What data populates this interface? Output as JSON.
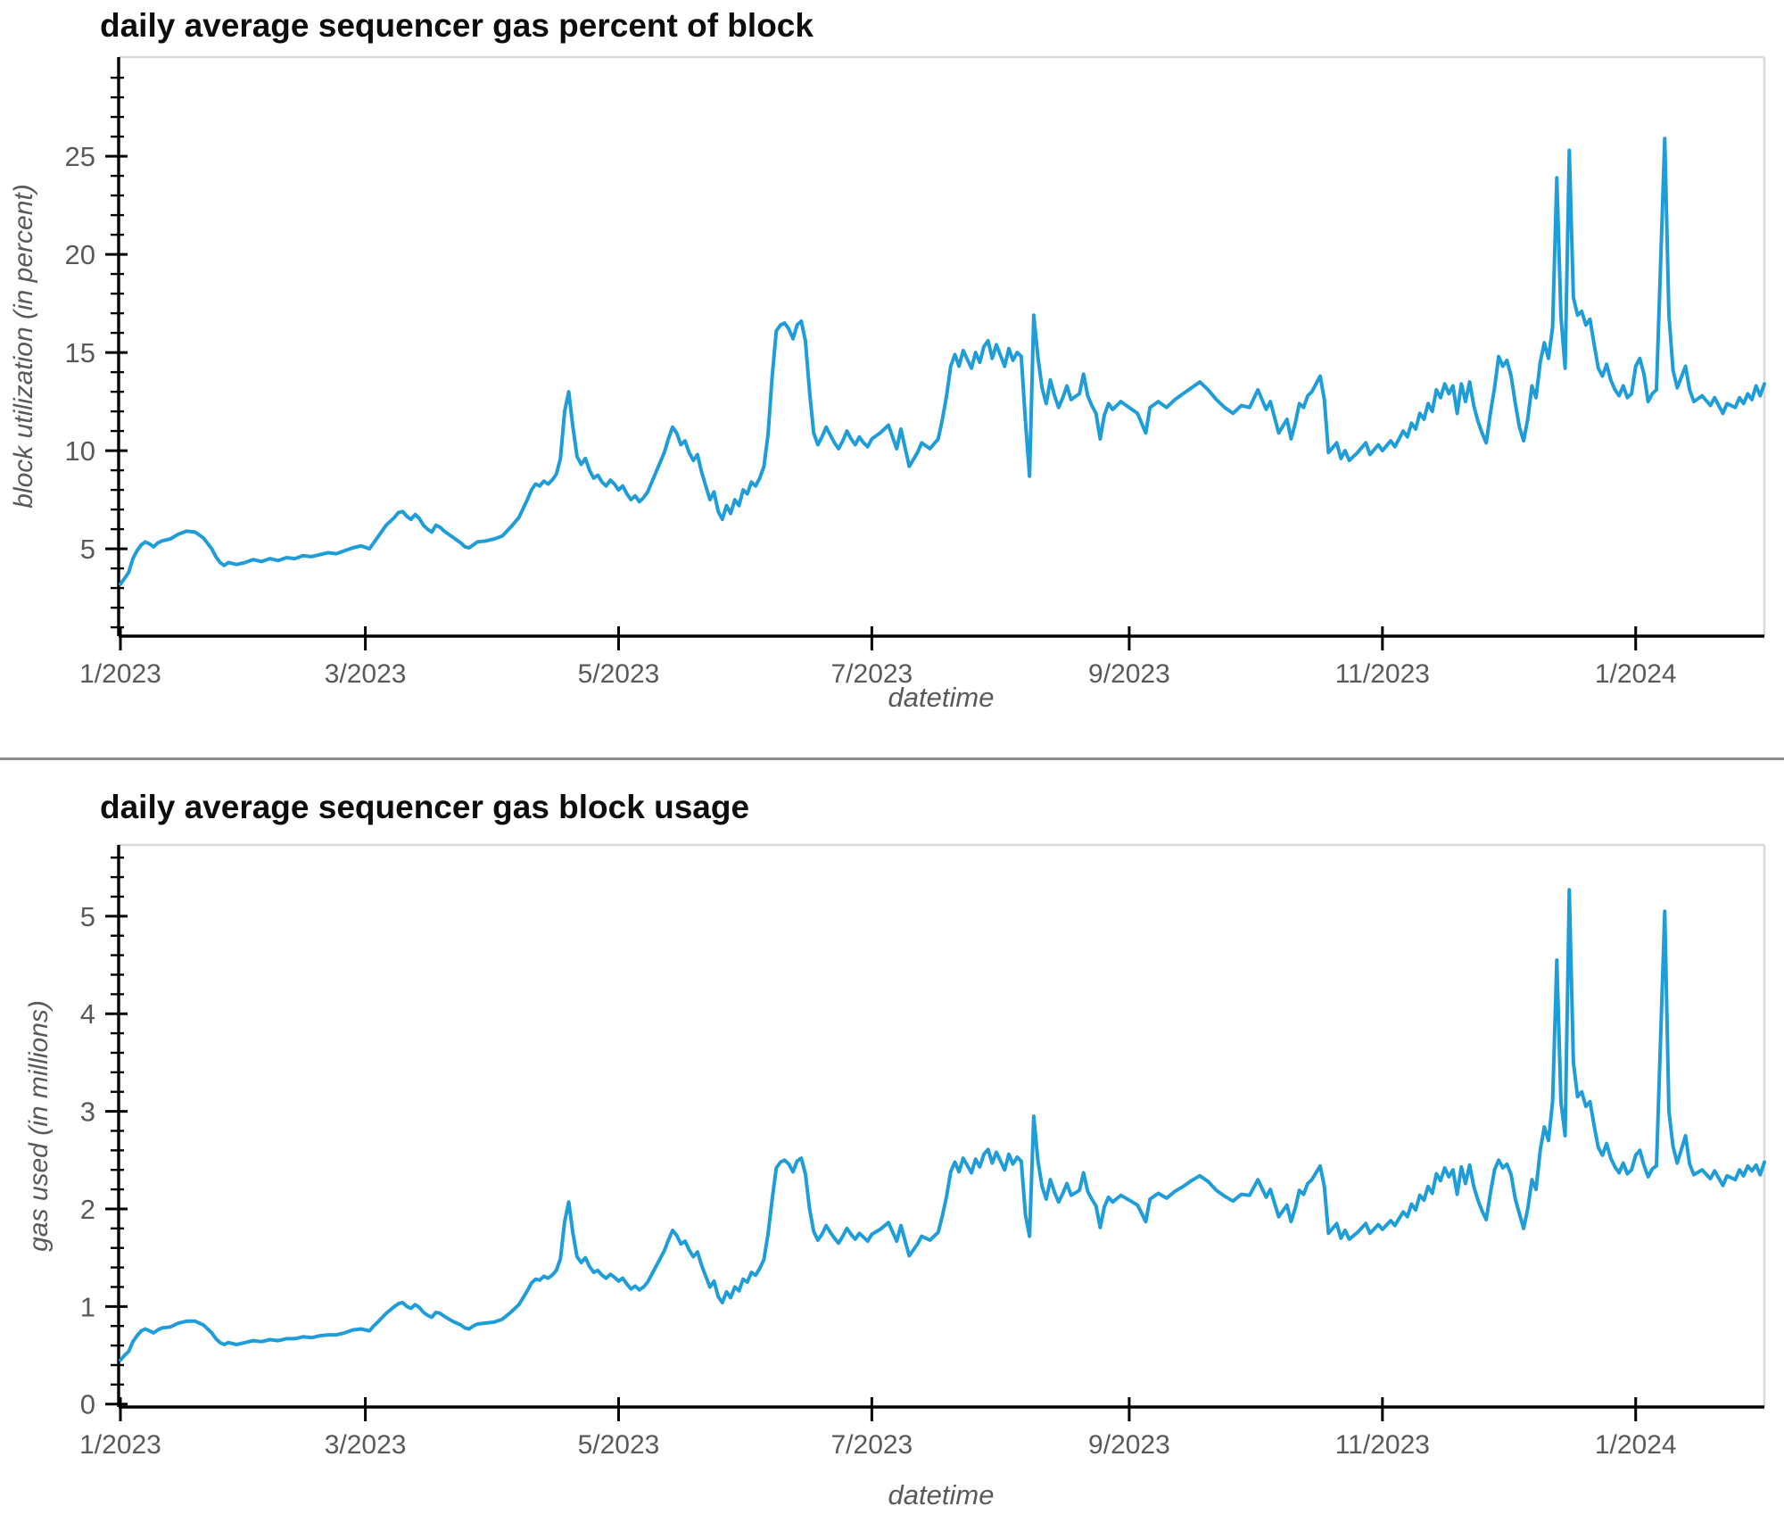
{
  "style": {
    "line_color": "#1f9dd8",
    "axis_color": "#000000",
    "frame_color": "#d9d9d9",
    "tick_label_color": "#595959",
    "title_color": "#0d0d0d",
    "divider_color": "#8c8c8c",
    "background": "#ffffff"
  },
  "chart_data": {
    "type": "line",
    "x_unit": "day index from 2023-01-01",
    "x_domain": [
      -0.43,
      396
    ],
    "x_tick_days": [
      0,
      59,
      120,
      181,
      243,
      304,
      365
    ],
    "x_tick_labels": [
      "1/2023",
      "3/2023",
      "5/2023",
      "7/2023",
      "9/2023",
      "11/2023",
      "1/2024"
    ],
    "legend": false,
    "grid": false,
    "charts": [
      {
        "title": "daily average sequencer gas percent of block",
        "ylabel": "block utilization (in percent)",
        "xlabel": "datetime",
        "ylim": [
          0.55,
          30.05
        ],
        "yticks": [
          5,
          10,
          15,
          20,
          25
        ],
        "ytick_labels": [
          "5",
          "10",
          "15",
          "20",
          "25"
        ],
        "minor_step": 1,
        "series_index": 1
      },
      {
        "title": "daily average sequencer gas block usage",
        "ylabel": "gas used (in millions)",
        "xlabel": "datetime",
        "ylim": [
          -0.03,
          5.73
        ],
        "yticks": [
          0,
          1,
          2,
          3,
          4,
          5
        ],
        "ytick_labels": [
          "0",
          "1",
          "2",
          "3",
          "4",
          "5"
        ],
        "minor_step": 0.2,
        "series_index": 2
      }
    ],
    "columns": [
      "day_index",
      "block_utilization_percent",
      "gas_used_millions"
    ],
    "points": [
      [
        0,
        3.2,
        0.45
      ],
      [
        1,
        3.5,
        0.5
      ],
      [
        2,
        3.8,
        0.54
      ],
      [
        3,
        4.5,
        0.64
      ],
      [
        4,
        4.9,
        0.7
      ],
      [
        5,
        5.2,
        0.75
      ],
      [
        6,
        5.35,
        0.77
      ],
      [
        7,
        5.25,
        0.75
      ],
      [
        8,
        5.1,
        0.73
      ],
      [
        9,
        5.3,
        0.76
      ],
      [
        10,
        5.4,
        0.78
      ],
      [
        12,
        5.5,
        0.79
      ],
      [
        14,
        5.75,
        0.83
      ],
      [
        16,
        5.9,
        0.85
      ],
      [
        18,
        5.85,
        0.85
      ],
      [
        20,
        5.55,
        0.81
      ],
      [
        22,
        5.0,
        0.73
      ],
      [
        23,
        4.6,
        0.67
      ],
      [
        24,
        4.3,
        0.63
      ],
      [
        25,
        4.15,
        0.61
      ],
      [
        26,
        4.3,
        0.63
      ],
      [
        28,
        4.2,
        0.61
      ],
      [
        30,
        4.3,
        0.63
      ],
      [
        32,
        4.45,
        0.65
      ],
      [
        34,
        4.35,
        0.64
      ],
      [
        36,
        4.5,
        0.66
      ],
      [
        38,
        4.4,
        0.65
      ],
      [
        40,
        4.55,
        0.67
      ],
      [
        42,
        4.5,
        0.67
      ],
      [
        44,
        4.65,
        0.69
      ],
      [
        46,
        4.6,
        0.68
      ],
      [
        48,
        4.7,
        0.7
      ],
      [
        50,
        4.8,
        0.71
      ],
      [
        52,
        4.75,
        0.71
      ],
      [
        54,
        4.9,
        0.73
      ],
      [
        56,
        5.05,
        0.76
      ],
      [
        58,
        5.15,
        0.77
      ],
      [
        60,
        5.0,
        0.75
      ],
      [
        61,
        5.3,
        0.8
      ],
      [
        62,
        5.6,
        0.84
      ],
      [
        64,
        6.2,
        0.93
      ],
      [
        66,
        6.6,
        1.0
      ],
      [
        67,
        6.85,
        1.03
      ],
      [
        68,
        6.9,
        1.04
      ],
      [
        69,
        6.65,
        1.0
      ],
      [
        70,
        6.5,
        0.98
      ],
      [
        71,
        6.75,
        1.02
      ],
      [
        72,
        6.55,
        0.99
      ],
      [
        73,
        6.2,
        0.94
      ],
      [
        74,
        6.0,
        0.91
      ],
      [
        75,
        5.85,
        0.89
      ],
      [
        76,
        6.2,
        0.94
      ],
      [
        77,
        6.1,
        0.93
      ],
      [
        78,
        5.9,
        0.9
      ],
      [
        80,
        5.6,
        0.85
      ],
      [
        82,
        5.3,
        0.81
      ],
      [
        83,
        5.1,
        0.78
      ],
      [
        84,
        5.05,
        0.77
      ],
      [
        85,
        5.2,
        0.8
      ],
      [
        86,
        5.35,
        0.82
      ],
      [
        88,
        5.4,
        0.83
      ],
      [
        90,
        5.5,
        0.84
      ],
      [
        92,
        5.65,
        0.87
      ],
      [
        94,
        6.1,
        0.94
      ],
      [
        96,
        6.6,
        1.02
      ],
      [
        98,
        7.5,
        1.16
      ],
      [
        99,
        8.0,
        1.24
      ],
      [
        100,
        8.3,
        1.28
      ],
      [
        101,
        8.2,
        1.27
      ],
      [
        102,
        8.45,
        1.31
      ],
      [
        103,
        8.3,
        1.29
      ],
      [
        104,
        8.5,
        1.32
      ],
      [
        105,
        8.8,
        1.37
      ],
      [
        106,
        9.6,
        1.49
      ],
      [
        107,
        12.0,
        1.87
      ],
      [
        108,
        13.0,
        2.07
      ],
      [
        109,
        11.2,
        1.75
      ],
      [
        110,
        9.7,
        1.51
      ],
      [
        111,
        9.3,
        1.45
      ],
      [
        112,
        9.6,
        1.5
      ],
      [
        113,
        9.0,
        1.41
      ],
      [
        114,
        8.6,
        1.35
      ],
      [
        115,
        8.75,
        1.37
      ],
      [
        116,
        8.4,
        1.32
      ],
      [
        117,
        8.2,
        1.29
      ],
      [
        118,
        8.5,
        1.33
      ],
      [
        119,
        8.3,
        1.3
      ],
      [
        120,
        8.0,
        1.26
      ],
      [
        121,
        8.2,
        1.29
      ],
      [
        122,
        7.8,
        1.23
      ],
      [
        123,
        7.5,
        1.18
      ],
      [
        124,
        7.7,
        1.21
      ],
      [
        125,
        7.4,
        1.17
      ],
      [
        126,
        7.6,
        1.2
      ],
      [
        127,
        7.9,
        1.25
      ],
      [
        128,
        8.4,
        1.33
      ],
      [
        129,
        8.9,
        1.41
      ],
      [
        130,
        9.4,
        1.49
      ],
      [
        131,
        9.9,
        1.57
      ],
      [
        132,
        10.6,
        1.68
      ],
      [
        133,
        11.2,
        1.78
      ],
      [
        134,
        10.9,
        1.73
      ],
      [
        135,
        10.3,
        1.64
      ],
      [
        136,
        10.5,
        1.67
      ],
      [
        137,
        9.9,
        1.58
      ],
      [
        138,
        9.5,
        1.51
      ],
      [
        139,
        9.8,
        1.56
      ],
      [
        140,
        8.9,
        1.42
      ],
      [
        141,
        8.2,
        1.31
      ],
      [
        142,
        7.5,
        1.2
      ],
      [
        143,
        7.9,
        1.26
      ],
      [
        144,
        6.9,
        1.1
      ],
      [
        145,
        6.5,
        1.04
      ],
      [
        146,
        7.2,
        1.15
      ],
      [
        147,
        6.8,
        1.09
      ],
      [
        148,
        7.5,
        1.2
      ],
      [
        149,
        7.2,
        1.16
      ],
      [
        150,
        8.0,
        1.28
      ],
      [
        151,
        7.8,
        1.25
      ],
      [
        152,
        8.4,
        1.35
      ],
      [
        153,
        8.2,
        1.32
      ],
      [
        154,
        8.6,
        1.39
      ],
      [
        155,
        9.2,
        1.48
      ],
      [
        156,
        10.8,
        1.74
      ],
      [
        157,
        13.8,
        2.1
      ],
      [
        158,
        16.1,
        2.42
      ],
      [
        159,
        16.4,
        2.48
      ],
      [
        160,
        16.5,
        2.5
      ],
      [
        161,
        16.2,
        2.46
      ],
      [
        162,
        15.7,
        2.38
      ],
      [
        163,
        16.4,
        2.49
      ],
      [
        164,
        16.6,
        2.52
      ],
      [
        165,
        15.6,
        2.36
      ],
      [
        166,
        13.0,
        2.0
      ],
      [
        167,
        10.9,
        1.77
      ],
      [
        168,
        10.3,
        1.68
      ],
      [
        169,
        10.7,
        1.74
      ],
      [
        170,
        11.2,
        1.83
      ],
      [
        171,
        10.8,
        1.76
      ],
      [
        172,
        10.4,
        1.7
      ],
      [
        173,
        10.1,
        1.65
      ],
      [
        174,
        10.5,
        1.72
      ],
      [
        175,
        11.0,
        1.8
      ],
      [
        176,
        10.6,
        1.74
      ],
      [
        177,
        10.3,
        1.69
      ],
      [
        178,
        10.7,
        1.75
      ],
      [
        179,
        10.4,
        1.71
      ],
      [
        180,
        10.2,
        1.67
      ],
      [
        181,
        10.6,
        1.74
      ],
      [
        183,
        10.9,
        1.79
      ],
      [
        185,
        11.3,
        1.86
      ],
      [
        187,
        10.1,
        1.67
      ],
      [
        188,
        11.1,
        1.83
      ],
      [
        190,
        9.2,
        1.52
      ],
      [
        192,
        9.9,
        1.64
      ],
      [
        193,
        10.4,
        1.72
      ],
      [
        195,
        10.1,
        1.68
      ],
      [
        197,
        10.6,
        1.76
      ],
      [
        198,
        11.6,
        1.93
      ],
      [
        199,
        12.8,
        2.13
      ],
      [
        200,
        14.3,
        2.38
      ],
      [
        201,
        14.9,
        2.48
      ],
      [
        202,
        14.3,
        2.38
      ],
      [
        203,
        15.1,
        2.52
      ],
      [
        205,
        14.2,
        2.37
      ],
      [
        206,
        15.0,
        2.51
      ],
      [
        207,
        14.5,
        2.43
      ],
      [
        208,
        15.3,
        2.56
      ],
      [
        209,
        15.6,
        2.61
      ],
      [
        210,
        14.7,
        2.47
      ],
      [
        211,
        15.4,
        2.58
      ],
      [
        213,
        14.3,
        2.4
      ],
      [
        214,
        15.2,
        2.56
      ],
      [
        215,
        14.6,
        2.46
      ],
      [
        216,
        15.0,
        2.53
      ],
      [
        217,
        14.8,
        2.49
      ],
      [
        218,
        11.5,
        1.94
      ],
      [
        219,
        8.7,
        1.72
      ],
      [
        220,
        16.9,
        2.95
      ],
      [
        221,
        14.8,
        2.5
      ],
      [
        222,
        13.2,
        2.23
      ],
      [
        223,
        12.4,
        2.1
      ],
      [
        224,
        13.6,
        2.3
      ],
      [
        225,
        12.8,
        2.17
      ],
      [
        226,
        12.2,
        2.07
      ],
      [
        227,
        12.7,
        2.16
      ],
      [
        228,
        13.3,
        2.26
      ],
      [
        229,
        12.6,
        2.14
      ],
      [
        231,
        12.9,
        2.19
      ],
      [
        232,
        13.9,
        2.37
      ],
      [
        233,
        12.8,
        2.18
      ],
      [
        234,
        12.3,
        2.1
      ],
      [
        235,
        11.9,
        2.03
      ],
      [
        236,
        10.6,
        1.81
      ],
      [
        237,
        11.8,
        2.02
      ],
      [
        238,
        12.4,
        2.12
      ],
      [
        239,
        12.1,
        2.07
      ],
      [
        241,
        12.5,
        2.14
      ],
      [
        243,
        12.2,
        2.09
      ],
      [
        245,
        11.9,
        2.04
      ],
      [
        247,
        10.9,
        1.87
      ],
      [
        248,
        12.2,
        2.1
      ],
      [
        250,
        12.5,
        2.16
      ],
      [
        252,
        12.2,
        2.11
      ],
      [
        254,
        12.6,
        2.18
      ],
      [
        256,
        12.9,
        2.23
      ],
      [
        258,
        13.2,
        2.29
      ],
      [
        260,
        13.5,
        2.34
      ],
      [
        262,
        13.1,
        2.28
      ],
      [
        264,
        12.6,
        2.19
      ],
      [
        266,
        12.2,
        2.13
      ],
      [
        268,
        11.9,
        2.08
      ],
      [
        270,
        12.3,
        2.15
      ],
      [
        272,
        12.2,
        2.14
      ],
      [
        274,
        13.1,
        2.3
      ],
      [
        276,
        12.1,
        2.12
      ],
      [
        277,
        12.5,
        2.2
      ],
      [
        279,
        10.9,
        1.92
      ],
      [
        281,
        11.6,
        2.04
      ],
      [
        282,
        10.6,
        1.87
      ],
      [
        283,
        11.4,
        2.01
      ],
      [
        284,
        12.4,
        2.19
      ],
      [
        285,
        12.2,
        2.15
      ],
      [
        286,
        12.8,
        2.26
      ],
      [
        287,
        13.0,
        2.3
      ],
      [
        289,
        13.8,
        2.44
      ],
      [
        290,
        12.6,
        2.23
      ],
      [
        291,
        9.9,
        1.75
      ],
      [
        293,
        10.4,
        1.85
      ],
      [
        294,
        9.6,
        1.7
      ],
      [
        295,
        10.0,
        1.78
      ],
      [
        296,
        9.5,
        1.69
      ],
      [
        298,
        9.9,
        1.76
      ],
      [
        300,
        10.4,
        1.85
      ],
      [
        301,
        9.8,
        1.75
      ],
      [
        303,
        10.3,
        1.84
      ],
      [
        304,
        10.0,
        1.79
      ],
      [
        306,
        10.5,
        1.88
      ],
      [
        307,
        10.2,
        1.83
      ],
      [
        309,
        11.0,
        1.97
      ],
      [
        310,
        10.7,
        1.92
      ],
      [
        311,
        11.4,
        2.05
      ],
      [
        312,
        11.1,
        1.99
      ],
      [
        313,
        11.9,
        2.14
      ],
      [
        314,
        11.6,
        2.09
      ],
      [
        315,
        12.4,
        2.23
      ],
      [
        316,
        12.0,
        2.16
      ],
      [
        317,
        13.1,
        2.36
      ],
      [
        318,
        12.7,
        2.29
      ],
      [
        319,
        13.4,
        2.42
      ],
      [
        320,
        12.9,
        2.33
      ],
      [
        321,
        13.3,
        2.4
      ],
      [
        322,
        11.9,
        2.15
      ],
      [
        323,
        13.4,
        2.43
      ],
      [
        324,
        12.5,
        2.26
      ],
      [
        325,
        13.5,
        2.45
      ],
      [
        326,
        12.3,
        2.23
      ],
      [
        327,
        11.5,
        2.09
      ],
      [
        328,
        10.9,
        1.98
      ],
      [
        329,
        10.4,
        1.89
      ],
      [
        330,
        11.9,
        2.16
      ],
      [
        331,
        13.2,
        2.4
      ],
      [
        332,
        14.8,
        2.5
      ],
      [
        333,
        14.3,
        2.42
      ],
      [
        334,
        14.6,
        2.46
      ],
      [
        335,
        13.8,
        2.35
      ],
      [
        336,
        12.4,
        2.1
      ],
      [
        337,
        11.2,
        1.95
      ],
      [
        338,
        10.5,
        1.8
      ],
      [
        339,
        11.6,
        2.0
      ],
      [
        340,
        13.3,
        2.3
      ],
      [
        341,
        12.7,
        2.2
      ],
      [
        342,
        14.5,
        2.6
      ],
      [
        343,
        15.5,
        2.84
      ],
      [
        344,
        14.7,
        2.7
      ],
      [
        345,
        16.3,
        3.1
      ],
      [
        346,
        23.9,
        4.55
      ],
      [
        347,
        16.8,
        3.09
      ],
      [
        348,
        14.2,
        2.75
      ],
      [
        349,
        25.3,
        5.27
      ],
      [
        350,
        17.8,
        3.5
      ],
      [
        351,
        16.9,
        3.15
      ],
      [
        352,
        17.1,
        3.2
      ],
      [
        353,
        16.4,
        3.05
      ],
      [
        354,
        16.7,
        3.1
      ],
      [
        355,
        15.4,
        2.85
      ],
      [
        356,
        14.2,
        2.63
      ],
      [
        357,
        13.8,
        2.55
      ],
      [
        358,
        14.4,
        2.67
      ],
      [
        359,
        13.6,
        2.52
      ],
      [
        360,
        13.1,
        2.43
      ],
      [
        361,
        12.8,
        2.37
      ],
      [
        362,
        13.3,
        2.47
      ],
      [
        363,
        12.7,
        2.36
      ],
      [
        364,
        12.9,
        2.4
      ],
      [
        365,
        14.3,
        2.55
      ],
      [
        366,
        14.7,
        2.6
      ],
      [
        367,
        13.9,
        2.45
      ],
      [
        368,
        12.5,
        2.33
      ],
      [
        369,
        12.9,
        2.41
      ],
      [
        370,
        13.1,
        2.44
      ],
      [
        372,
        25.9,
        5.05
      ],
      [
        373,
        16.9,
        3.0
      ],
      [
        374,
        14.1,
        2.64
      ],
      [
        375,
        13.2,
        2.47
      ],
      [
        377,
        14.3,
        2.75
      ],
      [
        378,
        13.1,
        2.46
      ],
      [
        379,
        12.5,
        2.35
      ],
      [
        381,
        12.8,
        2.4
      ],
      [
        383,
        12.3,
        2.31
      ],
      [
        384,
        12.7,
        2.39
      ],
      [
        386,
        11.9,
        2.24
      ],
      [
        387,
        12.4,
        2.34
      ],
      [
        389,
        12.2,
        2.3
      ],
      [
        390,
        12.7,
        2.4
      ],
      [
        391,
        12.4,
        2.34
      ],
      [
        392,
        12.9,
        2.44
      ],
      [
        393,
        12.6,
        2.39
      ],
      [
        394,
        13.3,
        2.45
      ],
      [
        395,
        12.8,
        2.35
      ],
      [
        396,
        13.4,
        2.48
      ]
    ]
  }
}
